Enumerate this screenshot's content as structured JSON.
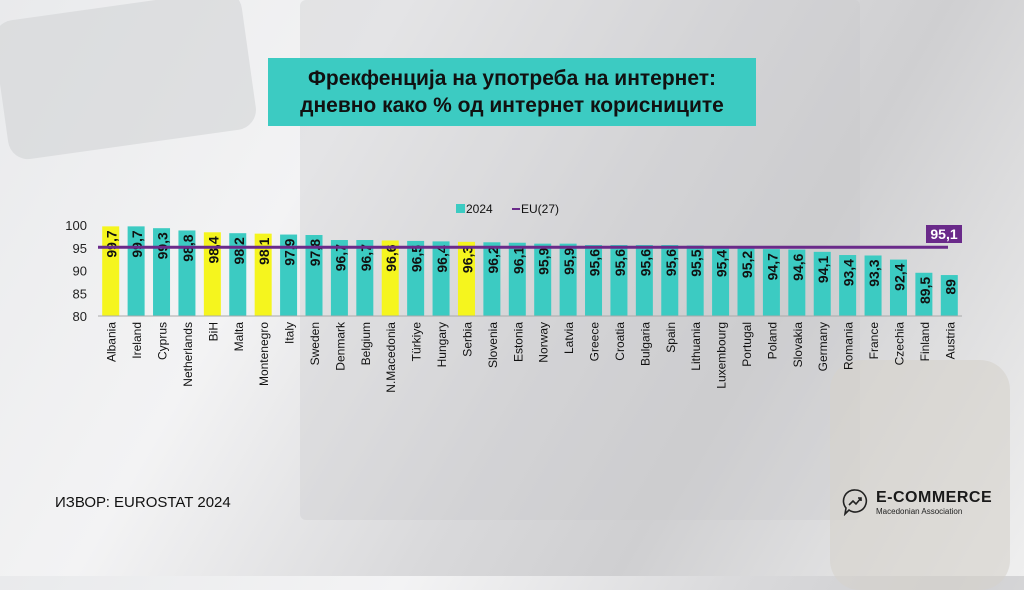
{
  "title_lines": [
    "Фрекфенција на употреба на интернет:",
    "дневно како % од интернет корисниците"
  ],
  "source": "ИЗВОР: EUROSTAT 2024",
  "logo": {
    "main": "E-COMMERCE",
    "sub": "Macedonian Association"
  },
  "colors": {
    "bar": "#3ccbc2",
    "highlight": "#f5f51e",
    "eu_line": "#6a2a8a",
    "title_bg": "#3ccbc2"
  },
  "chart_data": {
    "type": "bar",
    "title": "Фрекфенција на употреба на интернет: дневно како % од интернет корисниците",
    "categories": [
      "Albania",
      "Ireland",
      "Cyprus",
      "Netherlands",
      "BiH",
      "Malta",
      "Montenegro",
      "Italy",
      "Sweden",
      "Denmark",
      "Belgium",
      "N.Macedonia",
      "Türkiye",
      "Hungary",
      "Serbia",
      "Slovenia",
      "Estonia",
      "Norway",
      "Latvia",
      "Greece",
      "Croatia",
      "Bulgaria",
      "Spain",
      "Lithuania",
      "Luxembourg",
      "Portugal",
      "Poland",
      "Slovakia",
      "Germany",
      "Romania",
      "France",
      "Czechia",
      "Finland",
      "Austria"
    ],
    "series": [
      {
        "name": "2024",
        "values": [
          99.7,
          99.7,
          99.3,
          98.8,
          98.4,
          98.2,
          98.1,
          97.9,
          97.8,
          96.7,
          96.7,
          96.6,
          96.5,
          96.4,
          96.3,
          96.2,
          96.1,
          95.9,
          95.9,
          95.6,
          95.6,
          95.6,
          95.6,
          95.5,
          95.4,
          95.2,
          94.7,
          94.6,
          94.1,
          93.4,
          93.3,
          92.4,
          89.5,
          89
        ]
      }
    ],
    "data_labels": [
      "99,7",
      "99,7",
      "99,3",
      "98,8",
      "98,4",
      "98,2",
      "98,1",
      "97,9",
      "97,8",
      "96,7",
      "96,7",
      "96,6",
      "96,5",
      "96,4",
      "96,3",
      "96,2",
      "96,1",
      "95,9",
      "95,9",
      "95,6",
      "95,6",
      "95,6",
      "95,6",
      "95,5",
      "95,4",
      "95,2",
      "94,7",
      "94,6",
      "94,1",
      "93,4",
      "93,3",
      "92,4",
      "89,5",
      "89"
    ],
    "highlighted": [
      "Albania",
      "BiH",
      "Montenegro",
      "N.Macedonia",
      "Serbia"
    ],
    "reference_line": {
      "name": "EU(27)",
      "value": 95.1,
      "label": "95,1"
    },
    "legend": [
      "2024",
      "EU(27)"
    ],
    "legend_placement": "top-center",
    "yticks": [
      80,
      85,
      90,
      95,
      100
    ],
    "ylim": [
      80,
      100
    ],
    "grid": false
  }
}
